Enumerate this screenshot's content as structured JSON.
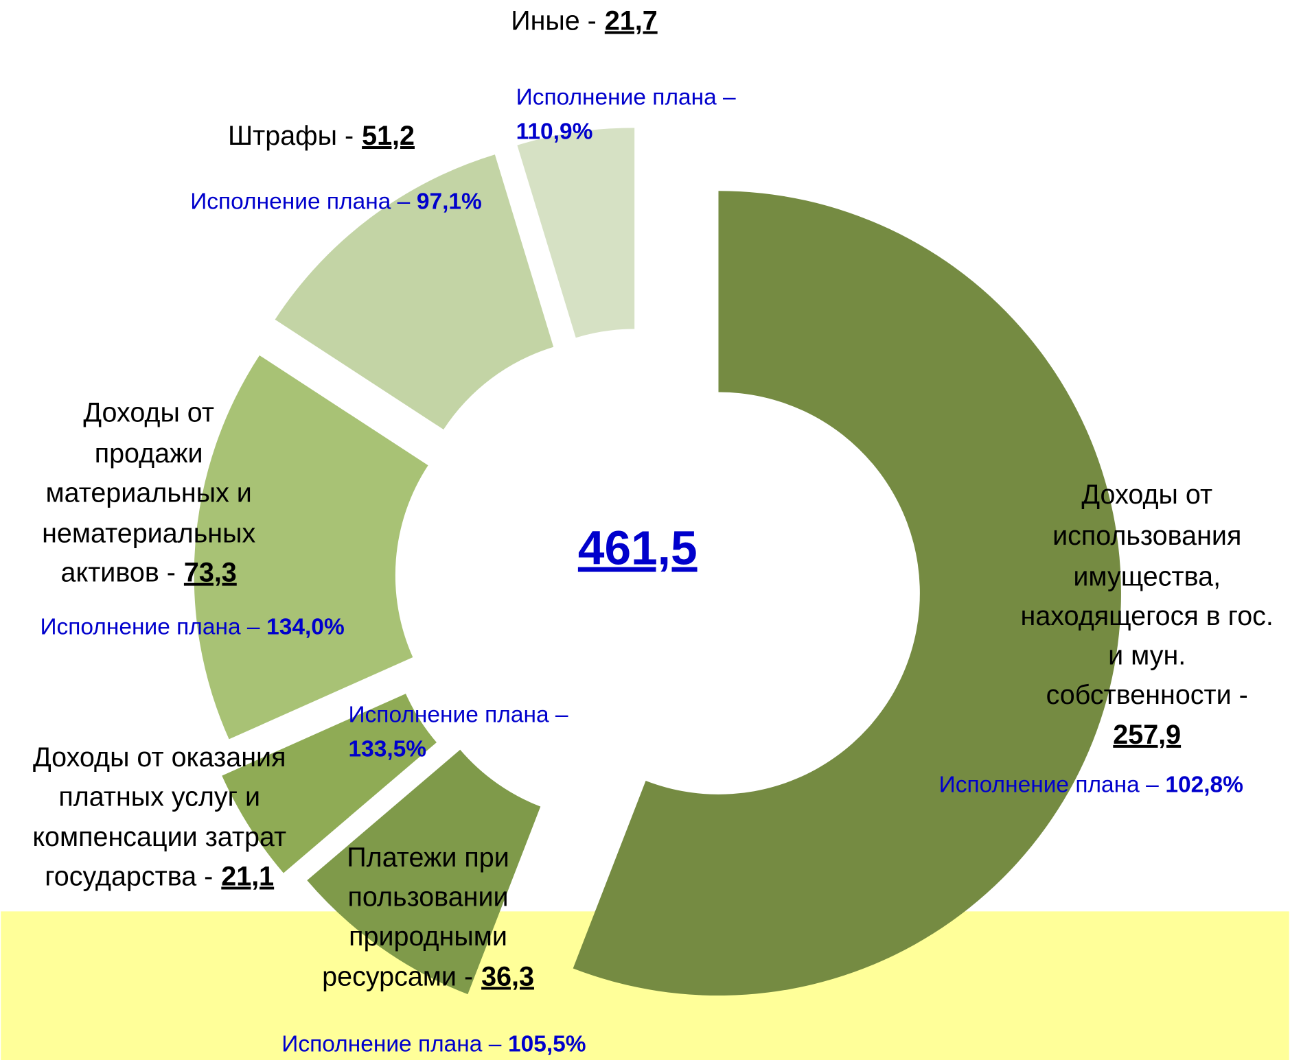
{
  "chart_data": {
    "type": "donut",
    "total": 461.5,
    "total_label": "461,5",
    "categories": [
      [
        "Доходы от",
        "использования",
        "имущества,",
        "находящегося в гос.",
        "и мун.",
        "собственности -"
      ],
      [
        "Платежи при",
        "пользовании",
        "природными",
        "ресурсами -"
      ],
      [
        "Доходы от оказания",
        "платных услуг и",
        "компенсации затрат",
        "государства -"
      ],
      [
        "Доходы от",
        "продажи",
        "материальных и",
        "нематериальных",
        "активов -"
      ],
      [
        "Штрафы -"
      ],
      [
        "Иные -"
      ]
    ],
    "values": [
      257.9,
      36.3,
      21.1,
      73.3,
      51.2,
      21.7
    ],
    "value_labels": [
      "257,9",
      "36,3",
      "21,1",
      "73,3",
      "51,2",
      "21,7"
    ],
    "plan_prefix": "Исполнение плана –",
    "plan": [
      "102,8%",
      "105,5%",
      "133,5%",
      "134,0%",
      "97,1%",
      "110,9%"
    ],
    "colors": [
      "#758b42",
      "#7f9a4a",
      "#8fab55",
      "#a8c275",
      "#c3d4a5",
      "#d6e1c4"
    ]
  }
}
